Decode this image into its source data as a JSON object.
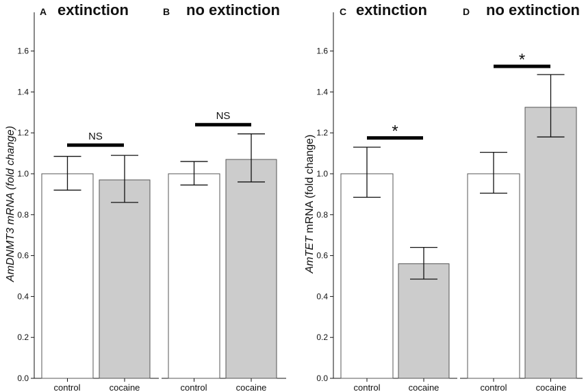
{
  "chart_data": [
    {
      "type": "bar",
      "panel_letter": "A",
      "title": "extinction",
      "categories": [
        "control",
        "cocaine"
      ],
      "values": [
        1.0,
        0.97
      ],
      "error_low": [
        0.92,
        0.86
      ],
      "error_high": [
        1.085,
        1.09
      ],
      "fills": [
        "#ffffff",
        "#cccccc"
      ],
      "significance": "NS",
      "sig_bar_y": 1.14,
      "ylabel": "",
      "ylabel_italic": "AmDNMT3 mRNA (fold change)",
      "ylim": [
        0,
        1.8
      ],
      "yticks": [
        "0.0",
        "0.2",
        "0.4",
        "0.6",
        "0.8",
        "1.0",
        "1.2",
        "1.4",
        "1.6"
      ]
    },
    {
      "type": "bar",
      "panel_letter": "B",
      "title": "no extinction",
      "categories": [
        "control",
        "cocaine"
      ],
      "values": [
        1.0,
        1.07
      ],
      "error_low": [
        0.945,
        0.96
      ],
      "error_high": [
        1.06,
        1.195
      ],
      "fills": [
        "#ffffff",
        "#cccccc"
      ],
      "significance": "NS",
      "sig_bar_y": 1.24,
      "ylim": [
        0,
        1.8
      ]
    },
    {
      "type": "bar",
      "panel_letter": "C",
      "title": "extinction",
      "categories": [
        "control",
        "cocaine"
      ],
      "values": [
        1.0,
        0.56
      ],
      "error_low": [
        0.885,
        0.485
      ],
      "error_high": [
        1.13,
        0.64
      ],
      "fills": [
        "#ffffff",
        "#cccccc"
      ],
      "significance": "*",
      "sig_bar_y": 1.175,
      "ylabel_italic": "AmTET",
      "ylabel": " mRNA (fold change)",
      "ylim": [
        0,
        1.8
      ],
      "yticks": [
        "0.0",
        "0.2",
        "0.4",
        "0.6",
        "0.8",
        "1.0",
        "1.2",
        "1.4",
        "1.6"
      ]
    },
    {
      "type": "bar",
      "panel_letter": "D",
      "title": "no extinction",
      "categories": [
        "control",
        "cocaine"
      ],
      "values": [
        1.0,
        1.325
      ],
      "error_low": [
        0.905,
        1.18
      ],
      "error_high": [
        1.105,
        1.485
      ],
      "fills": [
        "#ffffff",
        "#cccccc"
      ],
      "significance": "*",
      "sig_bar_y": 1.525,
      "ylim": [
        0,
        1.8
      ]
    }
  ]
}
